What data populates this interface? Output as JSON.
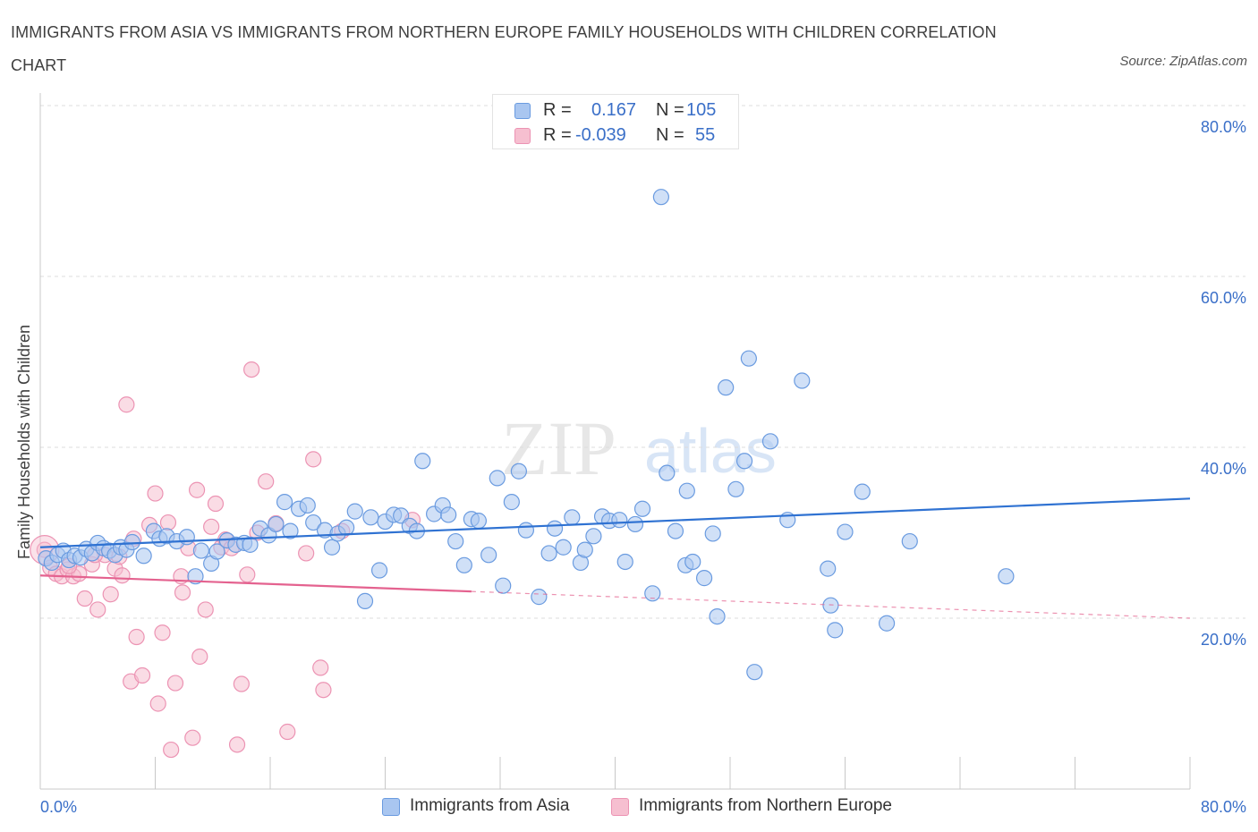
{
  "title": "IMMIGRANTS FROM ASIA VS IMMIGRANTS FROM NORTHERN EUROPE FAMILY HOUSEHOLDS WITH CHILDREN CORRELATION CHART",
  "source": "Source: ZipAtlas.com",
  "watermark": {
    "zip": "ZIP",
    "atlas": "atlas"
  },
  "legend": {
    "series1": {
      "r_label": "R =",
      "r_value": "0.167",
      "n_label": "N =",
      "n_value": "105"
    },
    "series2": {
      "r_label": "R =",
      "r_value": "-0.039",
      "n_label": "N =",
      "n_value": "55"
    }
  },
  "colors": {
    "asia_fill": "#a9c6f0",
    "asia_stroke": "#6a9be0",
    "asia_line": "#2f72d2",
    "europe_fill": "#f6bfd0",
    "europe_stroke": "#ec93b3",
    "europe_line": "#e4628f",
    "axis_label": "#3a6fc8",
    "grid": "#dcdcdc"
  },
  "chart_data": {
    "type": "scatter",
    "title": "IMMIGRANTS FROM ASIA VS IMMIGRANTS FROM NORTHERN EUROPE FAMILY HOUSEHOLDS WITH CHILDREN CORRELATION CHART",
    "xlabel": "",
    "ylabel": "Family Households with Children",
    "xlim": [
      0,
      80
    ],
    "ylim": [
      0,
      80
    ],
    "x_tick_labels": [
      "0.0%",
      "80.0%"
    ],
    "y_ticks": [
      20,
      40,
      60,
      80
    ],
    "y_tick_labels": [
      "20.0%",
      "40.0%",
      "60.0%",
      "80.0%"
    ],
    "grid": true,
    "legend_position": "bottom",
    "series": [
      {
        "name": "Immigrants from Asia",
        "color": "#a9c6f0",
        "r": 0.167,
        "n": 105,
        "trend": {
          "x0": 0,
          "y0": 28.3,
          "x1": 80,
          "y1": 34.0
        },
        "points": [
          [
            0.4,
            27.0
          ],
          [
            0.8,
            26.5
          ],
          [
            1.2,
            27.4
          ],
          [
            1.6,
            27.9
          ],
          [
            2.0,
            26.8
          ],
          [
            2.4,
            27.3
          ],
          [
            2.8,
            27.1
          ],
          [
            3.2,
            28.1
          ],
          [
            3.6,
            27.6
          ],
          [
            4.0,
            28.8
          ],
          [
            4.4,
            28.2
          ],
          [
            4.8,
            27.9
          ],
          [
            5.2,
            27.4
          ],
          [
            5.6,
            28.3
          ],
          [
            6.0,
            28.0
          ],
          [
            6.4,
            28.9
          ],
          [
            7.2,
            27.3
          ],
          [
            7.9,
            30.2
          ],
          [
            8.3,
            29.3
          ],
          [
            8.8,
            29.6
          ],
          [
            9.5,
            29.0
          ],
          [
            10.2,
            29.5
          ],
          [
            10.8,
            24.9
          ],
          [
            11.2,
            27.9
          ],
          [
            11.9,
            26.4
          ],
          [
            12.3,
            27.8
          ],
          [
            13.0,
            29.1
          ],
          [
            13.6,
            28.6
          ],
          [
            14.2,
            28.8
          ],
          [
            14.6,
            28.6
          ],
          [
            15.3,
            30.5
          ],
          [
            15.9,
            29.7
          ],
          [
            16.4,
            31.0
          ],
          [
            17.0,
            33.6
          ],
          [
            17.4,
            30.2
          ],
          [
            18.0,
            32.8
          ],
          [
            18.6,
            33.2
          ],
          [
            19.0,
            31.2
          ],
          [
            19.8,
            30.3
          ],
          [
            20.3,
            28.3
          ],
          [
            20.7,
            29.9
          ],
          [
            21.3,
            30.6
          ],
          [
            21.9,
            32.5
          ],
          [
            22.6,
            22.0
          ],
          [
            23.0,
            31.8
          ],
          [
            23.6,
            25.6
          ],
          [
            24.0,
            31.3
          ],
          [
            24.6,
            32.1
          ],
          [
            25.1,
            32.0
          ],
          [
            25.7,
            30.8
          ],
          [
            26.2,
            30.2
          ],
          [
            26.6,
            38.4
          ],
          [
            27.4,
            32.2
          ],
          [
            28.0,
            33.2
          ],
          [
            28.4,
            32.1
          ],
          [
            28.9,
            29.0
          ],
          [
            29.5,
            26.2
          ],
          [
            30.0,
            31.6
          ],
          [
            30.5,
            31.4
          ],
          [
            31.2,
            27.4
          ],
          [
            31.8,
            36.4
          ],
          [
            32.2,
            23.8
          ],
          [
            32.8,
            33.6
          ],
          [
            33.3,
            37.2
          ],
          [
            33.8,
            30.3
          ],
          [
            34.7,
            22.5
          ],
          [
            35.4,
            27.6
          ],
          [
            35.8,
            30.5
          ],
          [
            36.4,
            28.3
          ],
          [
            37.0,
            31.8
          ],
          [
            37.6,
            26.5
          ],
          [
            37.9,
            28.0
          ],
          [
            38.5,
            29.6
          ],
          [
            39.1,
            31.9
          ],
          [
            39.6,
            31.4
          ],
          [
            40.3,
            31.5
          ],
          [
            40.7,
            26.6
          ],
          [
            41.4,
            31.0
          ],
          [
            41.9,
            32.8
          ],
          [
            42.6,
            22.9
          ],
          [
            43.2,
            69.3
          ],
          [
            43.6,
            37.0
          ],
          [
            44.2,
            30.2
          ],
          [
            45.0,
            34.9
          ],
          [
            44.9,
            26.2
          ],
          [
            45.4,
            26.6
          ],
          [
            46.2,
            24.7
          ],
          [
            46.8,
            29.9
          ],
          [
            47.1,
            20.2
          ],
          [
            47.7,
            47.0
          ],
          [
            48.4,
            35.1
          ],
          [
            49.0,
            38.4
          ],
          [
            49.3,
            50.4
          ],
          [
            49.7,
            13.7
          ],
          [
            50.8,
            40.7
          ],
          [
            53.0,
            47.8
          ],
          [
            54.8,
            25.8
          ],
          [
            55.3,
            18.6
          ],
          [
            55.0,
            21.5
          ],
          [
            56.0,
            30.1
          ],
          [
            57.2,
            34.8
          ],
          [
            58.9,
            19.4
          ],
          [
            67.2,
            24.9
          ],
          [
            60.5,
            29.0
          ],
          [
            52.0,
            31.5
          ]
        ]
      },
      {
        "name": "Immigrants from Northern Europe",
        "color": "#f6bfd0",
        "r": -0.039,
        "n": 55,
        "trend": {
          "x0": 0,
          "y0": 25.0,
          "x1": 80,
          "y1": 20.0
        },
        "trend_solid_until_x": 30,
        "points": [
          [
            0.3,
            28.0
          ],
          [
            0.7,
            25.9
          ],
          [
            1.1,
            25.2
          ],
          [
            1.5,
            24.9
          ],
          [
            1.9,
            25.7
          ],
          [
            2.3,
            24.9
          ],
          [
            2.7,
            25.2
          ],
          [
            3.1,
            22.3
          ],
          [
            3.6,
            26.3
          ],
          [
            4.0,
            21.0
          ],
          [
            4.5,
            27.4
          ],
          [
            4.9,
            22.8
          ],
          [
            5.2,
            25.8
          ],
          [
            5.7,
            25.0
          ],
          [
            6.0,
            45.0
          ],
          [
            6.3,
            12.6
          ],
          [
            6.7,
            17.8
          ],
          [
            7.1,
            13.3
          ],
          [
            7.6,
            30.9
          ],
          [
            8.0,
            34.6
          ],
          [
            8.2,
            10.0
          ],
          [
            8.5,
            18.3
          ],
          [
            8.9,
            31.2
          ],
          [
            9.1,
            4.6
          ],
          [
            9.4,
            12.4
          ],
          [
            9.8,
            24.9
          ],
          [
            9.9,
            23.0
          ],
          [
            10.3,
            28.2
          ],
          [
            10.6,
            6.0
          ],
          [
            10.9,
            35.0
          ],
          [
            11.1,
            15.5
          ],
          [
            11.5,
            21.0
          ],
          [
            11.9,
            30.7
          ],
          [
            12.2,
            33.4
          ],
          [
            12.6,
            28.3
          ],
          [
            12.9,
            29.2
          ],
          [
            13.3,
            28.2
          ],
          [
            13.7,
            5.2
          ],
          [
            14.0,
            12.3
          ],
          [
            14.4,
            25.1
          ],
          [
            14.7,
            49.1
          ],
          [
            15.1,
            30.0
          ],
          [
            15.7,
            36.0
          ],
          [
            16.4,
            31.1
          ],
          [
            17.2,
            6.7
          ],
          [
            18.5,
            27.6
          ],
          [
            19.0,
            38.6
          ],
          [
            19.5,
            14.2
          ],
          [
            19.7,
            11.6
          ],
          [
            21.0,
            30.2
          ],
          [
            25.9,
            31.5
          ],
          [
            3.8,
            27.4
          ],
          [
            5.5,
            27.2
          ],
          [
            2.0,
            26.1
          ],
          [
            6.5,
            29.3
          ]
        ]
      }
    ]
  },
  "bottom_legend": {
    "asia": "Immigrants from Asia",
    "europe": "Immigrants from Northern Europe"
  }
}
